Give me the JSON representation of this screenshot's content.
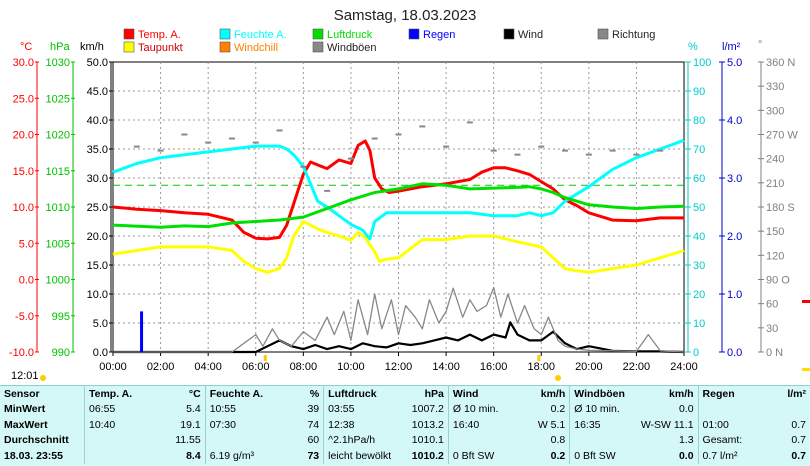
{
  "chart_data": {
    "type": "line",
    "title": "Samstag, 18.03.2023",
    "x_ticks": [
      "00:00",
      "02:00",
      "04:00",
      "06:00",
      "08:00",
      "10:00",
      "12:00",
      "14:00",
      "16:00",
      "18:00",
      "20:00",
      "22:00",
      "24:00"
    ],
    "xlim": [
      0,
      24
    ],
    "axes": {
      "temp": {
        "unit": "°C",
        "color": "#ff0000",
        "range": [
          -10,
          30
        ],
        "ticks": [
          "30.0",
          "25.0",
          "20.0",
          "15.0",
          "10.0",
          "5.0",
          "0.0",
          "-5.0",
          "-10.0"
        ]
      },
      "pressure": {
        "unit": "hPa",
        "color": "#00c000",
        "range": [
          990,
          1030
        ],
        "ticks": [
          "1030",
          "1025",
          "1020",
          "1015",
          "1010",
          "1005",
          "1000",
          "995",
          "990"
        ]
      },
      "wind": {
        "unit": "km/h",
        "color": "#000000",
        "range": [
          0,
          50
        ],
        "ticks": [
          "50.0",
          "45.0",
          "40.0",
          "35.0",
          "30.0",
          "25.0",
          "20.0",
          "15.0",
          "10.0",
          "5.0",
          "0.0"
        ]
      },
      "humidity": {
        "unit": "%",
        "color": "#00cccc",
        "range": [
          0,
          100
        ],
        "ticks": [
          "100",
          "90",
          "80",
          "70",
          "60",
          "50",
          "40",
          "30",
          "20",
          "10",
          "0"
        ]
      },
      "rain": {
        "unit": "l/m²",
        "color": "#0000cc",
        "range": [
          0,
          5
        ],
        "ticks": [
          "5.0",
          "4.0",
          "3.0",
          "2.0",
          "1.0",
          "0.0"
        ]
      },
      "direction": {
        "unit": "°",
        "color": "#808080",
        "range": [
          0,
          360
        ],
        "ticks": [
          "360 N",
          "330",
          "300",
          "270 W",
          "240",
          "210",
          "180 S",
          "150",
          "120",
          "90 O",
          "60",
          "30",
          "0 N"
        ]
      }
    },
    "legend": [
      {
        "name": "Temp. A.",
        "color": "#ff0000"
      },
      {
        "name": "Feuchte A.",
        "color": "#00ffff"
      },
      {
        "name": "Luftdruck",
        "color": "#00e000"
      },
      {
        "name": "Regen",
        "color": "#0000ff"
      },
      {
        "name": "Wind",
        "color": "#000000"
      },
      {
        "name": "Richtung",
        "color": "#888888"
      },
      {
        "name": "Taupunkt",
        "color": "#ffff00"
      },
      {
        "name": "Windchill",
        "color": "#ff8000"
      },
      {
        "name": "Windböen",
        "color": "#888888"
      }
    ],
    "series": [
      {
        "name": "Temp. A.",
        "axis": "temp",
        "color": "#ff0000",
        "x": [
          0,
          1,
          2,
          3,
          4,
          5,
          5.5,
          6,
          6.5,
          7,
          7.3,
          7.6,
          8,
          8.3,
          8.6,
          9,
          9.5,
          10,
          10.3,
          10.6,
          10.8,
          11,
          11.3,
          11.6,
          12,
          13,
          14,
          15,
          15.5,
          16,
          16.5,
          17,
          17.5,
          18,
          18.5,
          19,
          19.5,
          20,
          21,
          22,
          23,
          24
        ],
        "y": [
          10.0,
          9.7,
          9.5,
          9.2,
          9.0,
          8.2,
          6.5,
          5.7,
          5.6,
          5.8,
          7.5,
          10.5,
          14.5,
          16.2,
          15.8,
          15.3,
          16.5,
          16.0,
          18.5,
          19.1,
          17.8,
          14.0,
          12.5,
          12.0,
          12.2,
          12.8,
          13.2,
          13.8,
          14.8,
          15.4,
          15.4,
          15.0,
          14.5,
          13.5,
          12.5,
          11.0,
          10.2,
          9.2,
          8.2,
          8.1,
          8.5,
          8.5
        ]
      },
      {
        "name": "Taupunkt",
        "axis": "temp",
        "color": "#ffff00",
        "x": [
          0,
          2,
          4,
          5,
          5.5,
          6,
          6.5,
          7,
          7.3,
          7.6,
          8,
          8.3,
          8.6,
          9,
          9.5,
          10,
          10.3,
          10.6,
          11,
          11.2,
          11.5,
          12,
          13,
          14,
          15,
          16,
          17,
          18,
          18.5,
          19,
          19.5,
          20,
          21,
          22,
          23,
          24
        ],
        "y": [
          3.5,
          4.5,
          4.5,
          4.0,
          2.5,
          1.5,
          1.0,
          1.5,
          3.0,
          6.0,
          8.0,
          7.5,
          7.0,
          6.5,
          6.0,
          5.4,
          6.5,
          5.8,
          3.8,
          2.5,
          2.8,
          3.0,
          5.5,
          5.5,
          6.0,
          6.0,
          5.2,
          4.5,
          3.0,
          1.5,
          1.2,
          1.0,
          1.5,
          2.0,
          3.0,
          4.0
        ]
      },
      {
        "name": "Feuchte A.",
        "axis": "humidity",
        "color": "#00ffff",
        "x": [
          0,
          1,
          2,
          3,
          4,
          5,
          6,
          6.5,
          7,
          7.3,
          7.6,
          8,
          8.3,
          8.6,
          9,
          9.5,
          10,
          10.5,
          10.8,
          11,
          11.5,
          12,
          13,
          14,
          15,
          16,
          17,
          17.5,
          18,
          18.5,
          19,
          20,
          21,
          22,
          23,
          24
        ],
        "y": [
          62,
          65,
          67,
          68,
          69,
          70,
          71,
          71,
          71,
          70,
          68,
          64,
          58,
          52,
          50,
          47,
          44,
          42,
          39,
          45,
          48,
          48,
          48,
          48,
          48,
          47,
          47,
          48,
          47,
          48,
          52,
          57,
          63,
          67,
          70,
          73
        ]
      },
      {
        "name": "Luftdruck",
        "axis": "pressure",
        "color": "#00e000",
        "x": [
          0,
          2,
          3,
          4,
          5,
          6,
          7,
          8,
          9,
          10,
          11,
          12,
          13,
          14,
          15,
          16,
          17,
          17.5,
          18,
          18.5,
          19,
          20,
          21,
          22,
          23,
          24
        ],
        "y": [
          1007.5,
          1007.2,
          1007.4,
          1007.3,
          1007.8,
          1008.0,
          1008.2,
          1008.6,
          1009.8,
          1011.0,
          1012.0,
          1012.5,
          1013.2,
          1013.0,
          1012.5,
          1012.6,
          1012.7,
          1012.8,
          1012.5,
          1012.0,
          1011.3,
          1010.3,
          1010.0,
          1009.8,
          1010.0,
          1010.1
        ]
      },
      {
        "name": "Wind",
        "axis": "wind",
        "color": "#000000",
        "x": [
          0,
          6,
          6.5,
          7,
          7.5,
          8,
          8.5,
          9,
          9.5,
          10,
          10.5,
          11,
          11.5,
          12,
          12.5,
          13,
          13.5,
          14,
          14.5,
          15,
          15.5,
          16,
          16.5,
          16.7,
          17,
          17.5,
          18,
          18.5,
          19,
          19.5,
          20,
          21,
          22,
          23,
          24
        ],
        "y": [
          0,
          0,
          1.0,
          2.0,
          1.0,
          0.5,
          1.2,
          0.5,
          1.0,
          0.5,
          1.5,
          1.0,
          0.8,
          1.5,
          1.2,
          1.5,
          2.0,
          2.5,
          2.0,
          3.0,
          2.0,
          3.0,
          2.5,
          5.1,
          3.0,
          2.0,
          2.0,
          3.5,
          1.5,
          0.5,
          1.0,
          0.2,
          0.1,
          0.1,
          0
        ]
      },
      {
        "name": "Windböen",
        "axis": "wind",
        "color": "#888888",
        "x": [
          0,
          5,
          5.5,
          6,
          6.3,
          6.7,
          7,
          7.5,
          8,
          8.5,
          9,
          9.3,
          9.7,
          10,
          10.3,
          10.7,
          11,
          11.3,
          11.7,
          12,
          12.3,
          12.7,
          13,
          13.3,
          13.7,
          14,
          14.3,
          14.7,
          15,
          15.3,
          15.7,
          16,
          16.3,
          16.6,
          17,
          17.3,
          17.7,
          18,
          18.3,
          18.7,
          19,
          19.5,
          20,
          21,
          22,
          22.5,
          23,
          24
        ],
        "y": [
          0,
          0,
          1.5,
          3.0,
          1.0,
          4.0,
          2.0,
          1.0,
          3.5,
          2.0,
          6.0,
          3.0,
          7.0,
          2.0,
          9.0,
          3.0,
          10.0,
          4.0,
          9.0,
          3.0,
          8.0,
          6.0,
          4.0,
          9.0,
          5.0,
          7.0,
          11.0,
          6.0,
          9.0,
          7.0,
          8.0,
          11.1,
          6.0,
          10.0,
          5.0,
          8.0,
          4.0,
          3.0,
          6.0,
          2.0,
          1.0,
          0.5,
          0.3,
          0.2,
          0.1,
          3.0,
          0.2,
          0
        ]
      },
      {
        "name": "Regen",
        "axis": "rain",
        "color": "#0000ff",
        "x": [
          1.2
        ],
        "y": [
          0.7
        ]
      },
      {
        "name": "Richtung",
        "axis": "direction",
        "color": "#888888",
        "x": [
          1,
          2,
          3,
          4,
          5,
          6,
          7,
          8,
          9,
          10,
          11,
          12,
          13,
          14,
          15,
          16,
          17,
          18,
          19,
          20,
          21,
          22,
          23
        ],
        "y": [
          255,
          250,
          270,
          260,
          265,
          260,
          275,
          230,
          200,
          240,
          265,
          270,
          280,
          255,
          285,
          250,
          245,
          255,
          250,
          245,
          250,
          245,
          250
        ]
      }
    ],
    "reference_lines": [
      {
        "axis": "humidity",
        "value": 57.5,
        "style": "dashed",
        "color": "#00cc00"
      }
    ],
    "grid": true
  },
  "current_time": "12:01",
  "stats": {
    "headers": {
      "sensor": "Sensor",
      "temp": "Temp. A.",
      "temp_unit": "°C",
      "hum": "Feuchte A.",
      "hum_unit": "%",
      "press": "Luftdruck",
      "press_unit": "hPa",
      "wind": "Wind",
      "wind_unit": "km/h",
      "gust": "Windböen",
      "gust_unit": "km/h",
      "rain": "Regen",
      "rain_unit": "l/m²"
    },
    "rows": [
      {
        "label": "MinWert",
        "temp_time": "06:55",
        "temp_val": "5.4",
        "hum_time": "10:55",
        "hum_val": "39",
        "press_time": "03:55",
        "press_val": "1007.2",
        "wind_time": "Ø 10 min.",
        "wind_val": "0.2",
        "gust_time": "Ø 10 min.",
        "gust_val": "0.0",
        "rain_time": "",
        "rain_val": ""
      },
      {
        "label": "MaxWert",
        "temp_time": "10:40",
        "temp_val": "19.1",
        "hum_time": "07:30",
        "hum_val": "74",
        "press_time": "12:38",
        "press_val": "1013.2",
        "wind_time": "16:40",
        "wind_val": "W 5.1",
        "gust_time": "16:35",
        "gust_val": "W-SW 11.1",
        "rain_time": "01:00",
        "rain_val": "0.7"
      },
      {
        "label": "Durchschnitt",
        "temp_time": "",
        "temp_val": "11.55",
        "hum_time": "",
        "hum_val": "60",
        "press_time": "^2.1hPa/h",
        "press_val": "1010.1",
        "wind_time": "",
        "wind_val": "0.8",
        "gust_time": "",
        "gust_val": "1.3",
        "rain_time": "Gesamt:",
        "rain_val": "0.7"
      },
      {
        "label": "18.03. 23:55",
        "temp_time": "",
        "temp_val": "8.4",
        "hum_time": "6.19 g/m³",
        "hum_val": "73",
        "press_time": "leicht bewölkt",
        "press_val": "1010.2",
        "wind_time": "0 Bft SW",
        "wind_val": "0.2",
        "gust_time": "0 Bft SW",
        "gust_val": "0.0",
        "rain_time": "0.7 l/m²",
        "rain_val": "0.7"
      }
    ]
  }
}
